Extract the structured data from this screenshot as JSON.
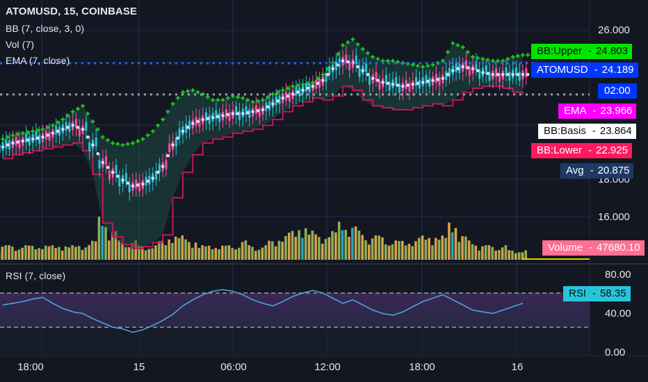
{
  "header": {
    "symbol_line": "ATOMUSD, 15, COINBASE",
    "bb_legend": "BB (7, close, 3, 0)",
    "vol_legend": "Vol (7)",
    "ema_legend": "EMA (7, close)",
    "rsi_legend": "RSI (7, close)"
  },
  "price_axis": {
    "labels": [
      "26.000",
      "18.000",
      "16.000"
    ]
  },
  "rsi_axis": {
    "labels": [
      "80.00",
      "40.00",
      "0.00"
    ]
  },
  "time_axis": {
    "labels": [
      "18:00",
      "15",
      "06:00",
      "12:00",
      "18:00",
      "16"
    ]
  },
  "value_tags": {
    "bb_upper": {
      "name": "BB:Upper",
      "sep": "-",
      "value": "24.803",
      "bg": "#00e600",
      "fg": "#0b0b0b"
    },
    "price": {
      "name": "ATOMUSD",
      "sep": "-",
      "value": "24.189",
      "bg": "#0037ff",
      "fg": "#ffffff"
    },
    "countdown": {
      "value": "02:00",
      "bg": "#0037ff",
      "fg": "#ffffff"
    },
    "ema": {
      "name": "EMA",
      "sep": "-",
      "value": "23.966",
      "bg": "#ff00ff",
      "fg": "#ffffff"
    },
    "bb_basis": {
      "name": "BB:Basis",
      "sep": "-",
      "value": "23.864",
      "bg": "#ffffff",
      "fg": "#0b0b0b"
    },
    "bb_lower": {
      "name": "BB:Lower",
      "sep": "-",
      "value": "22.925",
      "bg": "#ff1a5e",
      "fg": "#ffffff"
    },
    "avg": {
      "name": "Avg",
      "sep": "-",
      "value": "20.875",
      "bg": "#1d3a66",
      "fg": "#ffffff"
    },
    "volume": {
      "name": "Volume",
      "sep": "-",
      "value": "47680.10",
      "bg": "#ff6f91",
      "fg": "#ffffff"
    },
    "rsi": {
      "name": "RSI",
      "sep": "-",
      "value": "58.35",
      "bg": "#26c6da",
      "fg": "#0b0b0b"
    }
  },
  "colors": {
    "background": "#131722",
    "grid": "#2a4a7a",
    "bb_upper_marker": "#22cc22",
    "bb_lower_line": "#c2185b",
    "bb_fill": "#1f4a44",
    "ema_dots": "#ffffff",
    "candle_up": "#26c6da",
    "candle_down": "#ff4fa3",
    "vol_up": "#9ccc65",
    "vol_down": "#ffb74d",
    "vol_spike": "#26c6da",
    "rsi_line": "#4fa9e6",
    "rsi_band": "#4a2a6a",
    "price_dotted": "#2962ff",
    "avg_dotted": "#9e9e9e"
  },
  "chart_data": {
    "type": "line",
    "series": [
      {
        "name": "BB:Upper",
        "values": [
          20.6,
          20.8,
          20.9,
          21.0,
          21.1,
          21.3,
          21.6,
          22.0,
          22.3,
          21.5,
          20.7,
          20.4,
          20.3,
          20.4,
          20.6,
          21.0,
          21.6,
          22.4,
          23.0,
          23.1,
          22.9,
          22.6,
          22.6,
          22.8,
          22.7,
          22.5,
          22.6,
          22.9,
          23.1,
          23.3,
          23.4,
          23.5,
          23.9,
          24.5,
          25.4,
          25.7,
          25.2,
          24.8,
          24.6,
          24.6,
          24.5,
          24.4,
          24.3,
          24.4,
          24.6,
          25.5,
          25.3,
          24.8,
          24.7,
          24.6,
          24.6,
          24.8,
          24.9
        ]
      },
      {
        "name": "BB:Basis",
        "values": [
          20.2,
          20.4,
          20.5,
          20.6,
          20.7,
          20.9,
          21.1,
          21.3,
          21.1,
          20.3,
          19.4,
          18.9,
          18.5,
          18.2,
          18.3,
          18.6,
          19.2,
          20.3,
          21.0,
          21.4,
          21.6,
          21.7,
          21.8,
          21.9,
          21.9,
          22.0,
          22.1,
          22.4,
          22.7,
          22.9,
          23.1,
          23.3,
          23.6,
          24.2,
          24.6,
          24.5,
          24.1,
          23.7,
          23.5,
          23.4,
          23.3,
          23.4,
          23.5,
          23.6,
          23.7,
          24.1,
          24.3,
          24.2,
          24.0,
          23.9,
          23.9,
          23.9,
          23.9
        ]
      },
      {
        "name": "BB:Lower",
        "values": [
          19.6,
          19.8,
          19.9,
          20.0,
          20.1,
          20.2,
          20.3,
          20.4,
          20.0,
          18.8,
          16.3,
          15.6,
          15.2,
          15.0,
          15.1,
          15.3,
          15.7,
          17.6,
          18.9,
          19.8,
          20.4,
          20.6,
          20.7,
          20.9,
          21.0,
          21.1,
          21.3,
          21.6,
          22.0,
          22.3,
          22.5,
          22.7,
          22.6,
          22.8,
          23.3,
          23.1,
          22.6,
          22.3,
          22.2,
          22.1,
          22.1,
          22.2,
          22.3,
          22.4,
          22.3,
          22.6,
          23.0,
          23.2,
          23.3,
          23.3,
          23.2,
          23.0,
          22.9
        ]
      }
    ],
    "rsi": [
      56,
      58,
      60,
      63,
      65,
      58,
      52,
      48,
      46,
      40,
      35,
      30,
      28,
      24,
      27,
      32,
      38,
      45,
      55,
      62,
      68,
      72,
      74,
      72,
      68,
      62,
      58,
      55,
      60,
      66,
      70,
      73,
      70,
      64,
      58,
      62,
      56,
      50,
      46,
      44,
      48,
      54,
      60,
      64,
      68,
      62,
      56,
      50,
      48,
      46,
      50,
      54,
      58
    ],
    "volume": [
      3,
      3,
      3,
      3,
      3,
      3,
      3,
      3,
      3,
      4,
      9,
      6,
      4,
      4,
      3,
      3,
      4,
      5,
      5,
      4,
      3,
      3,
      3,
      3,
      4,
      3,
      3,
      4,
      5,
      6,
      7,
      6,
      5,
      6,
      8,
      7,
      6,
      5,
      5,
      4,
      4,
      4,
      5,
      5,
      5,
      8,
      5,
      4,
      3,
      3,
      3,
      2,
      2
    ],
    "y_price_range": [
      14.5,
      27.0
    ],
    "y_rsi_range": [
      0,
      100
    ]
  }
}
